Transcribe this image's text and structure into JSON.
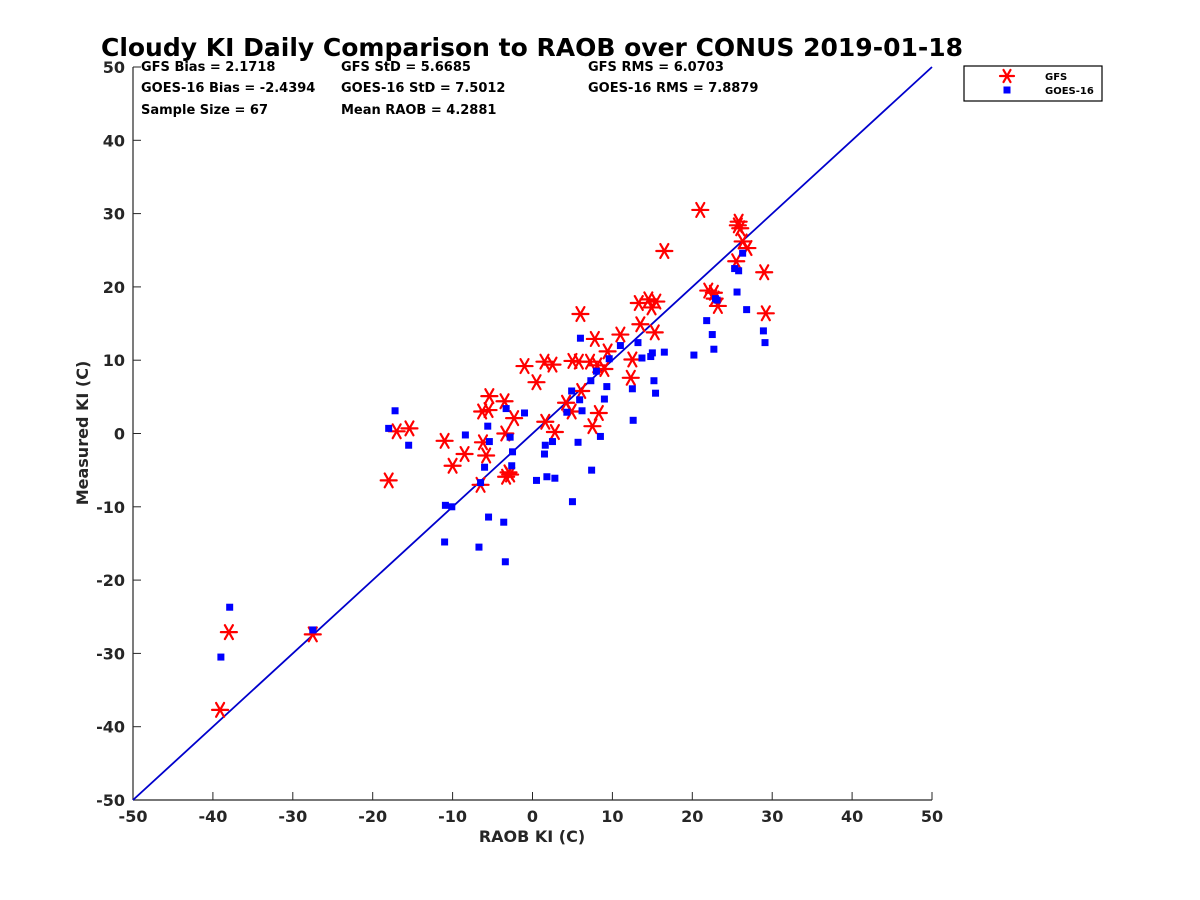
{
  "chart_data": {
    "type": "scatter",
    "title": "Cloudy KI Daily Comparison to RAOB over CONUS 2019-01-18",
    "xlabel": "RAOB KI (C)",
    "ylabel": "Measured KI (C)",
    "xlim": [
      -50,
      50
    ],
    "ylim": [
      -50,
      50
    ],
    "xticks": [
      "-50",
      "-40",
      "-30",
      "-20",
      "-10",
      "0",
      "10",
      "20",
      "30",
      "40",
      "50"
    ],
    "yticks": [
      "-50",
      "-40",
      "-30",
      "-20",
      "-10",
      "0",
      "10",
      "20",
      "30",
      "40",
      "50"
    ],
    "grid": false,
    "legend_position": "top-right",
    "stats": [
      "GFS Bias = 2.1718",
      "GFS StD = 5.6685",
      "GFS RMS = 6.0703",
      "GOES-16 Bias = -2.4394",
      "GOES-16 StD = 7.5012",
      "GOES-16 RMS = 7.8879",
      "Sample Size = 67",
      "Mean RAOB = 4.2881"
    ],
    "reference_line": {
      "from": [
        -50,
        -50
      ],
      "to": [
        50,
        50
      ],
      "color": "#0000cc"
    },
    "series": [
      {
        "name": "GFS",
        "marker": "asterisk",
        "color": "#ff0000",
        "x": [
          -39.1,
          -38,
          -27.5,
          -18,
          -17,
          -15.4,
          -11,
          -10,
          -8.5,
          -6.5,
          -6.3,
          -6.2,
          -5.8,
          -5.5,
          -5.4,
          -3.5,
          -3.4,
          -3.3,
          -3,
          -2.8,
          -2.3,
          -1,
          0.5,
          1.5,
          1.6,
          2.5,
          2.8,
          4.2,
          4.9,
          5,
          5.8,
          6,
          6.1,
          7.2,
          7.5,
          7.8,
          8.1,
          8.3,
          9,
          9.4,
          11,
          12.3,
          12.5,
          13.3,
          13.5,
          14.5,
          14.9,
          15.3,
          15.5,
          16.5,
          21,
          22,
          22.7,
          22.8,
          23.2,
          25.5,
          25.7,
          25.8,
          26,
          26.3,
          26.9,
          29,
          29.2
        ],
        "y": [
          -37.7,
          -27.1,
          -27.4,
          -6.4,
          0.3,
          0.7,
          -1,
          -4.4,
          -2.8,
          -7,
          3,
          -1.2,
          -3,
          3.2,
          5.1,
          4.4,
          0,
          -5.9,
          -5.3,
          -5.6,
          2.1,
          9.2,
          7,
          9.8,
          1.6,
          9.4,
          0.2,
          4.2,
          3,
          9.9,
          9.8,
          16.3,
          5.8,
          9.8,
          1,
          12.9,
          9.3,
          2.8,
          8.8,
          11.2,
          13.5,
          7.6,
          10.1,
          17.8,
          14.9,
          18.3,
          17.2,
          13.8,
          18,
          24.9,
          30.5,
          19.5,
          19.2,
          18.4,
          17.4,
          23.5,
          28.4,
          28.9,
          28,
          26.2,
          25.3,
          22,
          16.4
        ]
      },
      {
        "name": "GOES-16",
        "marker": "square",
        "color": "#0000ff",
        "x": [
          -39,
          -37.9,
          -27.5,
          -18,
          -17.2,
          -15.5,
          -11,
          -10.9,
          -10.1,
          -8.4,
          -6.7,
          -6.5,
          -6,
          -5.6,
          -5.5,
          -5.4,
          -3.6,
          -3.4,
          -3.3,
          -2.8,
          -2.6,
          -2.5,
          -1,
          0.5,
          1.5,
          1.6,
          1.8,
          2.5,
          2.8,
          4.3,
          4.9,
          5,
          5.7,
          5.9,
          6,
          6.2,
          7.3,
          7.4,
          8,
          8.5,
          9,
          9.3,
          9.6,
          11,
          12.5,
          12.6,
          13.2,
          13.7,
          14.8,
          15,
          15.2,
          15.4,
          16.5,
          20.2,
          21.8,
          22.5,
          22.7,
          22.9,
          23.1,
          25.3,
          25.6,
          25.8,
          26.3,
          26.8,
          28.9,
          29.1
        ],
        "y": [
          -30.5,
          -23.7,
          -26.8,
          0.7,
          3.1,
          -1.6,
          -14.8,
          -9.8,
          -10,
          -0.2,
          -15.5,
          -6.7,
          -4.6,
          1,
          -11.4,
          -1.1,
          -12.1,
          -17.5,
          3.4,
          -0.5,
          -4.4,
          -2.5,
          2.8,
          -6.4,
          -2.8,
          -1.6,
          -5.9,
          -1.1,
          -6.1,
          2.9,
          5.8,
          -9.3,
          -1.2,
          4.6,
          13,
          3.1,
          7.2,
          -5,
          8.5,
          -0.4,
          4.7,
          6.4,
          10.2,
          12,
          6.1,
          1.8,
          12.4,
          10.3,
          10.5,
          11,
          7.2,
          5.5,
          11.1,
          10.7,
          15.4,
          13.5,
          11.5,
          18.4,
          18.2,
          22.5,
          19.3,
          22.2,
          24.6,
          16.9,
          14,
          12.4
        ]
      }
    ]
  }
}
